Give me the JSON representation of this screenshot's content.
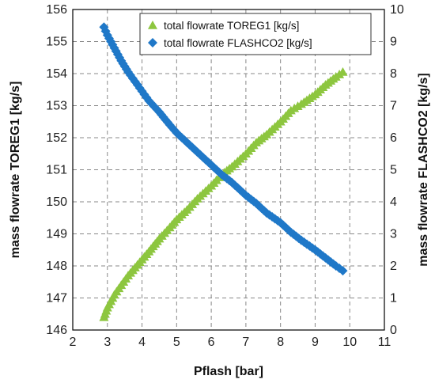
{
  "chart_data": {
    "type": "scatter",
    "title": "",
    "xlabel": "Pflash [bar]",
    "ylabel_left": "mass flowrate TOREG1 [kg/s]",
    "ylabel_right": "mass flowrate FLASHCO2 [kg/s]",
    "xlim": [
      2,
      11
    ],
    "ylim_left": [
      146,
      156
    ],
    "ylim_right": [
      0,
      10
    ],
    "x_ticks": [
      "2",
      "3",
      "4",
      "5",
      "6",
      "7",
      "8",
      "9",
      "10",
      "11"
    ],
    "y_left_ticks": [
      "146",
      "147",
      "148",
      "149",
      "150",
      "151",
      "152",
      "153",
      "154",
      "155",
      "156"
    ],
    "y_right_ticks": [
      "0",
      "1",
      "2",
      "3",
      "4",
      "5",
      "6",
      "7",
      "8",
      "9",
      "10"
    ],
    "grid": true,
    "legend_position": "top-right",
    "series": [
      {
        "name": "total flowrate TOREG1 [kg/s]",
        "axis": "left",
        "marker": "triangle",
        "color": "#8DC63F",
        "x": [
          2.9,
          3.0,
          3.2,
          3.4,
          3.6,
          3.8,
          4.0,
          4.2,
          4.5,
          4.8,
          5.0,
          5.3,
          5.6,
          6.0,
          6.3,
          6.6,
          7.0,
          7.3,
          7.6,
          8.0,
          8.3,
          8.6,
          9.0,
          9.3,
          9.6,
          9.8
        ],
        "values": [
          146.4,
          146.7,
          147.1,
          147.4,
          147.7,
          147.95,
          148.2,
          148.45,
          148.85,
          149.2,
          149.45,
          149.75,
          150.1,
          150.5,
          150.85,
          151.1,
          151.5,
          151.85,
          152.1,
          152.5,
          152.85,
          153.05,
          153.35,
          153.65,
          153.9,
          154.05
        ]
      },
      {
        "name": "total flowrate FLASHCO2 [kg/s]",
        "axis": "right",
        "marker": "diamond",
        "color": "#1F78C8",
        "x": [
          2.9,
          3.0,
          3.2,
          3.4,
          3.6,
          3.8,
          4.0,
          4.2,
          4.5,
          4.8,
          5.0,
          5.3,
          5.6,
          6.0,
          6.3,
          6.6,
          7.0,
          7.3,
          7.6,
          8.0,
          8.3,
          8.6,
          9.0,
          9.3,
          9.6,
          9.8
        ],
        "values": [
          9.45,
          9.2,
          8.8,
          8.4,
          8.05,
          7.75,
          7.45,
          7.15,
          6.8,
          6.4,
          6.15,
          5.85,
          5.55,
          5.15,
          4.85,
          4.6,
          4.2,
          3.95,
          3.65,
          3.35,
          3.05,
          2.8,
          2.5,
          2.25,
          2.0,
          1.85
        ]
      }
    ]
  }
}
